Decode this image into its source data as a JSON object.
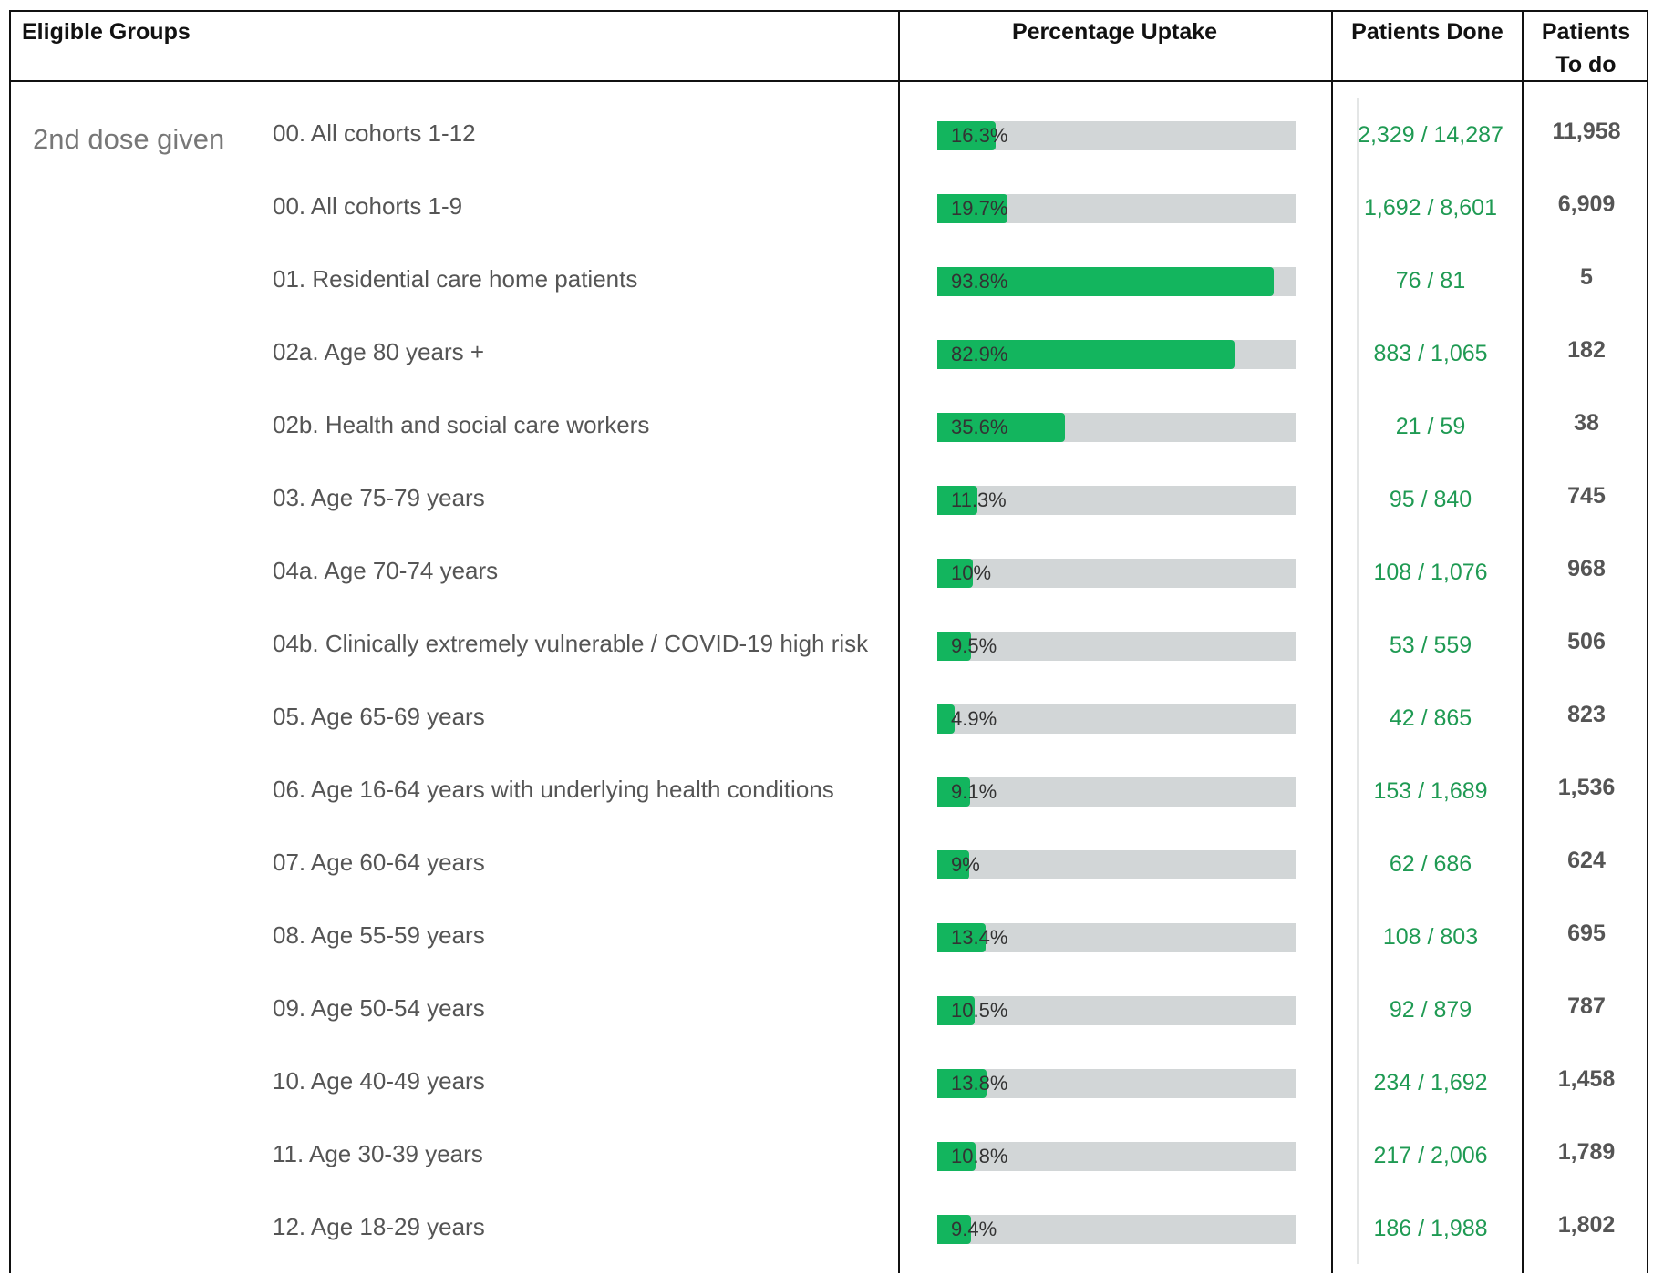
{
  "headers": {
    "eligible_groups": "Eligible Groups",
    "percentage_uptake": "Percentage Uptake",
    "patients_done": "Patients Done",
    "patients_to_do_line1": "Patients",
    "patients_to_do_line2": "To do"
  },
  "group_label": "2nd dose given",
  "colors": {
    "bar_fill": "#13b55e",
    "bar_track": "#d2d6d7",
    "done_text": "#1f9a53"
  },
  "rows": [
    {
      "label": "00. All cohorts 1-12",
      "pct_label": "16.3%",
      "pct": 16.3,
      "done": "2,329 / 14,287",
      "todo": "11,958"
    },
    {
      "label": "00. All cohorts 1-9",
      "pct_label": "19.7%",
      "pct": 19.7,
      "done": "1,692 / 8,601",
      "todo": "6,909"
    },
    {
      "label": "01. Residential care home patients",
      "pct_label": "93.8%",
      "pct": 93.8,
      "done": "76 / 81",
      "todo": "5"
    },
    {
      "label": "02a. Age 80 years +",
      "pct_label": "82.9%",
      "pct": 82.9,
      "done": "883 / 1,065",
      "todo": "182"
    },
    {
      "label": "02b. Health and social care workers",
      "pct_label": "35.6%",
      "pct": 35.6,
      "done": "21 / 59",
      "todo": "38"
    },
    {
      "label": "03. Age 75-79 years",
      "pct_label": "11.3%",
      "pct": 11.3,
      "done": "95 / 840",
      "todo": "745"
    },
    {
      "label": "04a. Age 70-74 years",
      "pct_label": "10%",
      "pct": 10,
      "done": "108 / 1,076",
      "todo": "968"
    },
    {
      "label": "04b. Clinically extremely vulnerable / COVID-19 high risk",
      "pct_label": "9.5%",
      "pct": 9.5,
      "done": "53 / 559",
      "todo": "506"
    },
    {
      "label": "05. Age 65-69 years",
      "pct_label": "4.9%",
      "pct": 4.9,
      "done": "42 / 865",
      "todo": "823"
    },
    {
      "label": "06. Age 16-64 years with underlying health conditions",
      "pct_label": "9.1%",
      "pct": 9.1,
      "done": "153 / 1,689",
      "todo": "1,536"
    },
    {
      "label": "07. Age 60-64 years",
      "pct_label": "9%",
      "pct": 9,
      "done": "62 / 686",
      "todo": "624"
    },
    {
      "label": "08. Age 55-59 years",
      "pct_label": "13.4%",
      "pct": 13.4,
      "done": "108 / 803",
      "todo": "695"
    },
    {
      "label": "09. Age 50-54 years",
      "pct_label": "10.5%",
      "pct": 10.5,
      "done": "92 / 879",
      "todo": "787"
    },
    {
      "label": "10. Age 40-49 years",
      "pct_label": "13.8%",
      "pct": 13.8,
      "done": "234 / 1,692",
      "todo": "1,458"
    },
    {
      "label": "11. Age 30-39 years",
      "pct_label": "10.8%",
      "pct": 10.8,
      "done": "217 / 2,006",
      "todo": "1,789"
    },
    {
      "label": "12. Age 18-29 years",
      "pct_label": "9.4%",
      "pct": 9.4,
      "done": "186 / 1,988",
      "todo": "1,802"
    }
  ]
}
